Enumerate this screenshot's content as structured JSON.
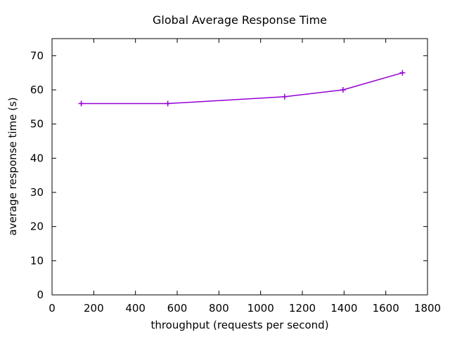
{
  "window": {
    "background": "#ffffff"
  },
  "chart_data": {
    "type": "line",
    "title": "Global Average Response Time",
    "xlabel": "throughput (requests per second)",
    "ylabel": "average response time (s)",
    "series": [
      {
        "name": "global-average-response-time",
        "x": [
          140,
          555,
          1115,
          1395,
          1680
        ],
        "y": [
          56,
          56,
          58,
          60,
          65
        ],
        "color": "#9400d3",
        "marker": "plus",
        "line_width": 1.5
      }
    ],
    "xlim": [
      0,
      1800
    ],
    "ylim": [
      0,
      75
    ],
    "xticks": [
      0,
      200,
      400,
      600,
      800,
      1000,
      1200,
      1400,
      1600,
      1800
    ],
    "yticks": [
      0,
      10,
      20,
      30,
      40,
      50,
      60,
      70
    ],
    "grid": false,
    "legend": "none",
    "tick_style": "inward-mirrored",
    "axis_color": "#000000",
    "text_color": "#000000",
    "tick_font_px": 15
  }
}
